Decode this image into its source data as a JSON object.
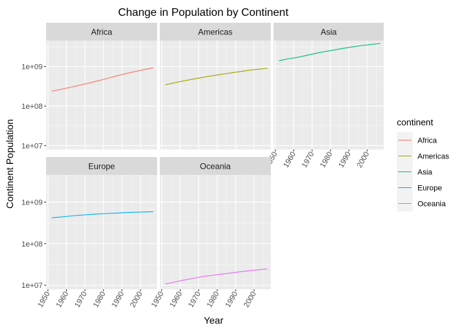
{
  "chart_data": {
    "type": "line",
    "title": "Change in Population by Continent",
    "xlabel": "Year",
    "ylabel": "Continent Population",
    "y_scale": "log10",
    "ylim": [
      8000000,
      4500000000
    ],
    "xlim": [
      1949,
      2009
    ],
    "y_ticks": [
      10000000,
      100000000,
      1000000000
    ],
    "y_tick_labels": [
      "1e+07",
      "1e+08",
      "1e+09"
    ],
    "x_ticks": [
      1950,
      1960,
      1970,
      1980,
      1990,
      2000
    ],
    "x_tick_labels": [
      "1950",
      "1960",
      "1970",
      "1980",
      "1990",
      "2000"
    ],
    "facets": [
      "Africa",
      "Americas",
      "Asia",
      "Europe",
      "Oceania"
    ],
    "grid": true,
    "legend": {
      "title": "continent",
      "position": "right",
      "entries": [
        "Africa",
        "Americas",
        "Asia",
        "Europe",
        "Oceania"
      ]
    },
    "colors": {
      "Africa": "#F8766D",
      "Americas": "#A3A500",
      "Asia": "#00BF7D",
      "Europe": "#00B0F6",
      "Oceania": "#E76BF3"
    },
    "x": [
      1952,
      1957,
      1962,
      1967,
      1972,
      1977,
      1982,
      1987,
      1992,
      1997,
      2002,
      2007
    ],
    "series": [
      {
        "name": "Africa",
        "values": [
          237640501,
          264837738,
          296516865,
          335289489,
          379879541,
          433061021,
          499348587,
          574834110,
          659081517,
          743832984,
          833723916,
          929539692
        ]
      },
      {
        "name": "Americas",
        "values": [
          345152446,
          386953916,
          433270254,
          480746623,
          529384210,
          578067699,
          630290920,
          682753971,
          739274104,
          796900410,
          849772762,
          898871184
        ]
      },
      {
        "name": "Asia",
        "values": [
          1395357351,
          1562780599,
          1696357182,
          1905662900,
          2150972248,
          2384513556,
          2610135582,
          2871220762,
          3133292191,
          3383285500,
          3601802203,
          3811953827
        ]
      },
      {
        "name": "Europe",
        "values": [
          418120846,
          437890351,
          460355155,
          481178958,
          500635059,
          517164531,
          531266901,
          543094160,
          558142797,
          568944148,
          578223869,
          586098529
        ]
      },
      {
        "name": "Oceania",
        "values": [
          10686006,
          11941976,
          13283518,
          14600414,
          16106434,
          17239000,
          18394850,
          19574415,
          20919651,
          22241430,
          23454829,
          24549947
        ]
      }
    ]
  }
}
